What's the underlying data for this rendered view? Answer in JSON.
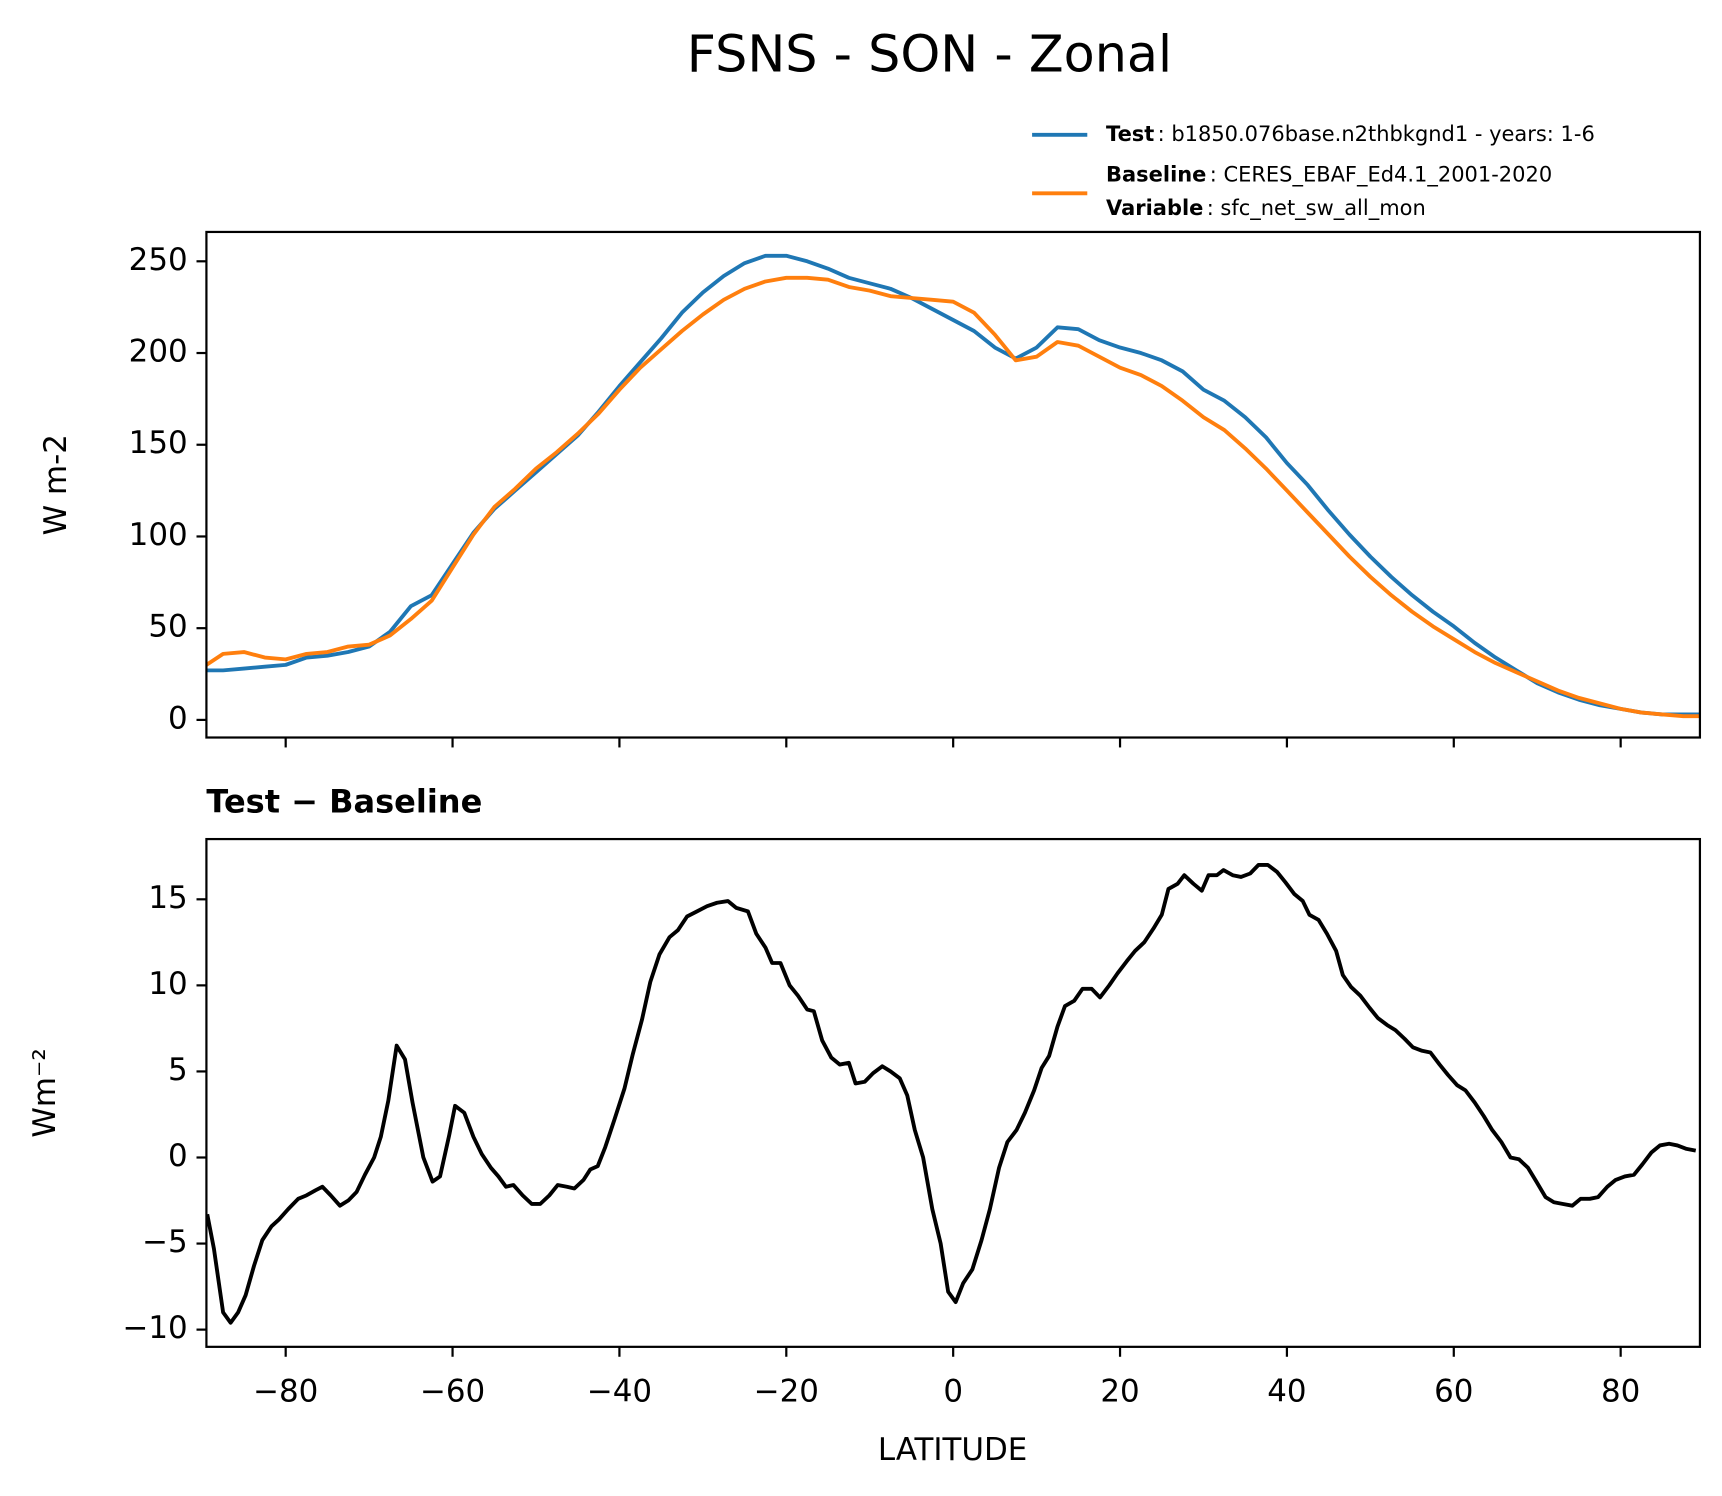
{
  "chart_data": [
    {
      "type": "line",
      "title": "FSNS - SON - Zonal",
      "ylabel": "W m-2",
      "xlim": [
        -89.5,
        89.5
      ],
      "ylim": [
        -9.6,
        266
      ],
      "xticks": [
        -80,
        -60,
        -40,
        -20,
        0,
        20,
        40,
        60,
        80
      ],
      "xtick_labels": false,
      "yticks": [
        0,
        50,
        100,
        150,
        200,
        250
      ],
      "x": [
        -89.5,
        -87.5,
        -85,
        -82.5,
        -80,
        -77.5,
        -75,
        -72.5,
        -70,
        -67.5,
        -65,
        -62.5,
        -60,
        -57.5,
        -55,
        -52.5,
        -50,
        -47.5,
        -45,
        -42.5,
        -40,
        -37.5,
        -35,
        -32.5,
        -30,
        -27.5,
        -25,
        -22.5,
        -20,
        -17.5,
        -15,
        -12.5,
        -10,
        -7.5,
        -5,
        -2.5,
        0,
        2.5,
        5,
        7.5,
        10,
        12.5,
        15,
        17.5,
        20,
        22.5,
        25,
        27.5,
        30,
        32.5,
        35,
        37.5,
        40,
        42.5,
        45,
        47.5,
        50,
        52.5,
        55,
        57.5,
        60,
        62.5,
        65,
        67.5,
        70,
        72.5,
        75,
        77.5,
        80,
        82.5,
        85,
        87.5,
        89.5
      ],
      "series": [
        {
          "name": "Test",
          "label": ": b1850.076base.n2thbkgnd1 - years: 1-6",
          "color": "#1f77b4",
          "values": [
            27,
            27,
            28,
            29,
            30,
            34,
            35,
            37,
            40,
            48,
            62,
            68,
            85,
            102,
            115,
            125,
            135,
            145,
            155,
            168,
            182,
            195,
            208,
            222,
            233,
            242,
            249,
            253,
            253,
            250,
            246,
            241,
            238,
            235,
            230,
            224,
            218,
            212,
            203,
            197,
            203,
            214,
            213,
            207,
            203,
            200,
            196,
            190,
            180,
            174,
            165,
            154,
            140,
            128,
            114,
            101,
            89,
            78,
            68,
            59,
            51,
            42,
            34,
            27,
            20,
            15,
            11,
            8,
            6,
            4,
            3,
            3,
            3
          ]
        },
        {
          "name": "Baseline",
          "label": ": CERES_EBAF_Ed4.1_2001-2020",
          "color": "#ff7f0e",
          "values": [
            30,
            36,
            37,
            34,
            33,
            36,
            37,
            40,
            41,
            46,
            55,
            65,
            83,
            101,
            116,
            126,
            137,
            146,
            156,
            167,
            180,
            192,
            202,
            212,
            221,
            229,
            235,
            239,
            241,
            241,
            240,
            236,
            234,
            231,
            230,
            229,
            228,
            222,
            210,
            196,
            198,
            206,
            204,
            198,
            192,
            188,
            182,
            174,
            165,
            158,
            148,
            137,
            125,
            113,
            101,
            89,
            78,
            68,
            59,
            51,
            44,
            37,
            31,
            26,
            21,
            16,
            12,
            9,
            6,
            4,
            3,
            2,
            2
          ]
        }
      ],
      "legend_note": {
        "name": "Variable",
        "label": ": sfc_net_sw_all_mon"
      }
    },
    {
      "type": "line",
      "title": "Test − Baseline",
      "ylabel": "Wm⁻²",
      "xlabel": "LATITUDE",
      "xlim": [
        -89.5,
        89.5
      ],
      "ylim": [
        -11,
        18.5
      ],
      "xticks": [
        {
          "value": -80,
          "label": "−80"
        },
        {
          "value": -60,
          "label": "−60"
        },
        {
          "value": -40,
          "label": "−40"
        },
        {
          "value": -20,
          "label": "−20"
        },
        0,
        20,
        40,
        60,
        80
      ],
      "yticks": [
        {
          "value": -10,
          "label": "−10"
        },
        {
          "value": -5,
          "label": "−5"
        },
        0,
        5,
        10,
        15
      ],
      "x": [
        -89.4,
        -88.6,
        -87.5,
        -86.6,
        -85.7,
        -84.8,
        -83.8,
        -82.8,
        -81.7,
        -80.8,
        -79.7,
        -78.5,
        -77.5,
        -76.4,
        -75.6,
        -74.6,
        -73.5,
        -72.5,
        -71.5,
        -70.5,
        -69.4,
        -68.6,
        -67.7,
        -66.7,
        -65.7,
        -64.8,
        -63.5,
        -62.4,
        -61.5,
        -60.4,
        -59.7,
        -58.6,
        -57.5,
        -56.5,
        -55.4,
        -54.5,
        -53.6,
        -52.7,
        -51.6,
        -50.5,
        -49.5,
        -48.4,
        -47.4,
        -46.3,
        -45.4,
        -44.3,
        -43.5,
        -42.6,
        -41.7,
        -40.6,
        -39.4,
        -38.4,
        -37.3,
        -36.3,
        -35.2,
        -34,
        -33,
        -31.9,
        -30.7,
        -29.5,
        -28.3,
        -27,
        -26,
        -24.6,
        -23.6,
        -22.5,
        -21.7,
        -20.7,
        -19.6,
        -18.6,
        -17.5,
        -16.7,
        -15.7,
        -14.6,
        -13.6,
        -12.5,
        -11.7,
        -10.6,
        -9.6,
        -8.5,
        -7.5,
        -6.4,
        -5.5,
        -4.6,
        -3.6,
        -2.5,
        -1.5,
        -0.6,
        0.3,
        1.2,
        2.3,
        3.4,
        4.4,
        5.5,
        6.5,
        7.6,
        8.6,
        9.7,
        10.6,
        11.5,
        12.5,
        13.4,
        14.5,
        15.5,
        16.6,
        17.6,
        18.7,
        19.7,
        20.8,
        21.8,
        22.9,
        24,
        25,
        25.8,
        26.9,
        27.7,
        28.8,
        29.8,
        30.6,
        31.6,
        32.4,
        33.5,
        34.5,
        35.6,
        36.6,
        37.7,
        38.8,
        39.8,
        40.9,
        41.9,
        42.7,
        43.8,
        44.8,
        45.9,
        46.7,
        47.7,
        48.8,
        49.9,
        50.9,
        52,
        53,
        54.1,
        55.1,
        56.2,
        57.2,
        58.3,
        59.3,
        60.4,
        61.4,
        62.5,
        63.6,
        64.6,
        65.7,
        66.8,
        67.8,
        68.9,
        69.9,
        71,
        72,
        73.1,
        74.2,
        75.2,
        76.3,
        77.3,
        78.4,
        79.4,
        80.5,
        81.6,
        82.6,
        83.7,
        84.7,
        85.8,
        86.8,
        87.9,
        89
      ],
      "series": [
        {
          "color": "#000000",
          "values": [
            -3.3,
            -5.3,
            -9,
            -9.6,
            -9,
            -8,
            -6.3,
            -4.8,
            -4,
            -3.6,
            -3,
            -2.4,
            -2.2,
            -1.9,
            -1.7,
            -2.2,
            -2.8,
            -2.5,
            -2,
            -1,
            0,
            1.2,
            3.3,
            6.5,
            5.7,
            3.2,
            0,
            -1.4,
            -1.1,
            1.3,
            3,
            2.6,
            1.2,
            0.2,
            -0.6,
            -1.1,
            -1.7,
            -1.6,
            -2.2,
            -2.7,
            -2.7,
            -2.2,
            -1.6,
            -1.7,
            -1.8,
            -1.3,
            -0.7,
            -0.5,
            0.6,
            2.2,
            4,
            6,
            8,
            10.2,
            11.8,
            12.8,
            13.2,
            14,
            14.3,
            14.6,
            14.8,
            14.9,
            14.5,
            14.3,
            13,
            12.2,
            11.3,
            11.3,
            10,
            9.4,
            8.6,
            8.5,
            6.8,
            5.8,
            5.4,
            5.5,
            4.3,
            4.4,
            4.9,
            5.3,
            5,
            4.6,
            3.6,
            1.6,
            0,
            -3,
            -5,
            -7.8,
            -8.4,
            -7.3,
            -6.5,
            -4.8,
            -3,
            -0.6,
            0.9,
            1.6,
            2.6,
            3.9,
            5.2,
            5.9,
            7.6,
            8.8,
            9.1,
            9.8,
            9.8,
            9.3,
            10,
            10.7,
            11.4,
            12,
            12.5,
            13.3,
            14.1,
            15.6,
            15.9,
            16.4,
            15.9,
            15.5,
            16.4,
            16.4,
            16.7,
            16.4,
            16.3,
            16.5,
            17,
            17,
            16.6,
            16,
            15.3,
            14.9,
            14.1,
            13.8,
            13,
            12,
            10.6,
            9.9,
            9.4,
            8.7,
            8.1,
            7.7,
            7.4,
            6.9,
            6.4,
            6.2,
            6.1,
            5.4,
            4.8,
            4.2,
            3.9,
            3.2,
            2.4,
            1.6,
            0.9,
            0,
            -0.1,
            -0.6,
            -1.4,
            -2.3,
            -2.6,
            -2.7,
            -2.8,
            -2.4,
            -2.4,
            -2.3,
            -1.7,
            -1.3,
            -1.1,
            -1,
            -0.4,
            0.3,
            0.7,
            0.8,
            0.7,
            0.5,
            0.4
          ]
        }
      ]
    }
  ]
}
